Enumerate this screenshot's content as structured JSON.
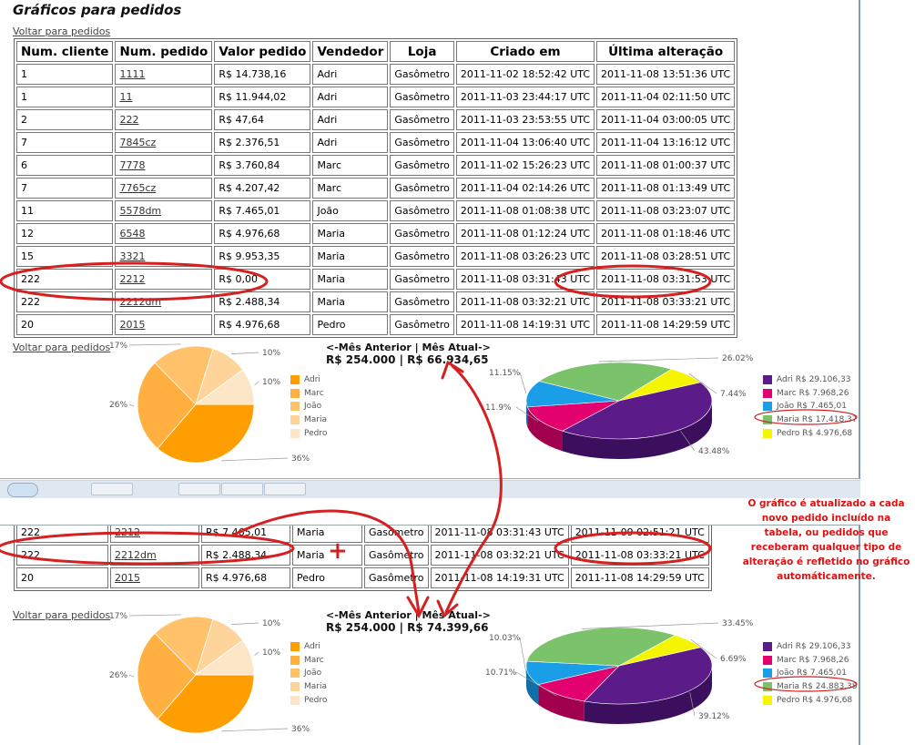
{
  "title": "Gráficos para pedidos",
  "back_link": "Voltar para pedidos",
  "headers": [
    "Num. cliente",
    "Num. pedido",
    "Valor pedido",
    "Vendedor",
    "Loja",
    "Criado em",
    "Última alteração"
  ],
  "rows_top": [
    [
      "1",
      "1111",
      "R$ 14.738,16",
      "Adri",
      "Gasômetro",
      "2011-11-02 18:52:42 UTC",
      "2011-11-08 13:51:36 UTC"
    ],
    [
      "1",
      "11",
      "R$ 11.944,02",
      "Adri",
      "Gasômetro",
      "2011-11-03 23:44:17 UTC",
      "2011-11-04 02:11:50 UTC"
    ],
    [
      "2",
      "222",
      "R$ 47,64",
      "Adri",
      "Gasômetro",
      "2011-11-03 23:53:55 UTC",
      "2011-11-04 03:00:05 UTC"
    ],
    [
      "7",
      "7845cz",
      "R$ 2.376,51",
      "Adri",
      "Gasômetro",
      "2011-11-04 13:06:40 UTC",
      "2011-11-04 13:16:12 UTC"
    ],
    [
      "6",
      "7778",
      "R$ 3.760,84",
      "Marc",
      "Gasômetro",
      "2011-11-02 15:26:23 UTC",
      "2011-11-08 01:00:37 UTC"
    ],
    [
      "7",
      "7765cz",
      "R$ 4.207,42",
      "Marc",
      "Gasômetro",
      "2011-11-04 02:14:26 UTC",
      "2011-11-08 01:13:49 UTC"
    ],
    [
      "11",
      "5578dm",
      "R$ 7.465,01",
      "João",
      "Gasômetro",
      "2011-11-08 01:08:38 UTC",
      "2011-11-08 03:23:07 UTC"
    ],
    [
      "12",
      "6548",
      "R$ 4.976,68",
      "Maria",
      "Gasômetro",
      "2011-11-08 01:12:24 UTC",
      "2011-11-08 01:18:46 UTC"
    ],
    [
      "15",
      "3321",
      "R$ 9.953,35",
      "Maria",
      "Gasômetro",
      "2011-11-08 03:26:23 UTC",
      "2011-11-08 03:28:51 UTC"
    ],
    [
      "222",
      "2212",
      "R$ 0,00",
      "Maria",
      "Gasômetro",
      "2011-11-08 03:31:43 UTC",
      "2011-11-08 03:31:53 UTC"
    ],
    [
      "222",
      "2212dm",
      "R$ 2.488,34",
      "Maria",
      "Gasômetro",
      "2011-11-08 03:32:21 UTC",
      "2011-11-08 03:33:21 UTC"
    ],
    [
      "20",
      "2015",
      "R$ 4.976,68",
      "Pedro",
      "Gasômetro",
      "2011-11-08 14:19:31 UTC",
      "2011-11-08 14:29:59 UTC"
    ]
  ],
  "rows_bottom": [
    [
      "222",
      "2212",
      "R$ 7.465,01",
      "Maria",
      "Gasômetro",
      "2011-11-08 03:31:43 UTC",
      "2011-11-09 02:51:21 UTC"
    ],
    [
      "222",
      "2212dm",
      "R$ 2.488,34",
      "Maria",
      "Gasômetro",
      "2011-11-08 03:32:21 UTC",
      "2011-11-08 03:33:21 UTC"
    ],
    [
      "20",
      "2015",
      "R$ 4.976,68",
      "Pedro",
      "Gasômetro",
      "2011-11-08 14:19:31 UTC",
      "2011-11-08 14:29:59 UTC"
    ]
  ],
  "totals_top": {
    "header": "<-Mês Anterior | Mês Atual->",
    "values": "R$ 254.000 | R$ 66.934,65"
  },
  "totals_bottom": {
    "header": "<-Mês Anterior | Mês Atual->",
    "values": "R$ 254.000 | R$ 74.399,66"
  },
  "annotation_note": "O gráfico é atualizado a cada novo pedido incluído na tabela, ou pedidos que receberam qualquer tipo de alteração é refletido no gráfico automáticamente.",
  "annotation_plus": "+",
  "colors": {
    "annotation": "#d42020",
    "orange_pie": [
      "#ff9e00",
      "#ffb040",
      "#ffc16a",
      "#ffd49a",
      "#fde6c8"
    ],
    "pie3d": [
      "#5b1c8a",
      "#e3006f",
      "#1b9ee8",
      "#7ac36a",
      "#f5f500"
    ]
  },
  "chart_data": [
    {
      "type": "pie",
      "series": [
        {
          "values": [
            36,
            26,
            17,
            10,
            10
          ]
        }
      ],
      "categories": [
        "Adri",
        "Marc",
        "João",
        "Maria",
        "Pedro"
      ],
      "slice_labels": [
        "36%",
        "26%",
        "17%",
        "10%",
        "10%"
      ],
      "legend": "right"
    },
    {
      "type": "pie",
      "categories": [
        "Adri R$ 29.106,33",
        "Marc R$ 7.968,26",
        "João R$ 7.465,01",
        "Maria R$ 17.418,37",
        "Pedro R$ 4.976,68"
      ],
      "series": [
        {
          "values": [
            43.48,
            11.9,
            11.15,
            26.02,
            7.44
          ]
        }
      ],
      "slice_labels": [
        "43.48%",
        "11.9%",
        "11.15%",
        "26.02%",
        "7.44%"
      ],
      "legend": "right"
    },
    {
      "type": "pie",
      "series": [
        {
          "values": [
            36,
            26,
            17,
            10,
            10
          ]
        }
      ],
      "categories": [
        "Adri",
        "Marc",
        "João",
        "Maria",
        "Pedro"
      ],
      "slice_labels": [
        "36%",
        "26%",
        "17%",
        "10%",
        "10%"
      ],
      "legend": "right"
    },
    {
      "type": "pie",
      "categories": [
        "Adri R$ 29.106,33",
        "Marc R$ 7.968,26",
        "João R$ 7.465,01",
        "Maria R$ 24.883,38",
        "Pedro R$ 4.976,68"
      ],
      "series": [
        {
          "values": [
            39.12,
            10.71,
            10.03,
            33.45,
            6.69
          ]
        }
      ],
      "slice_labels": [
        "39.12%",
        "10.71%",
        "10.03%",
        "33.45%",
        "6.69%"
      ],
      "legend": "right"
    }
  ]
}
